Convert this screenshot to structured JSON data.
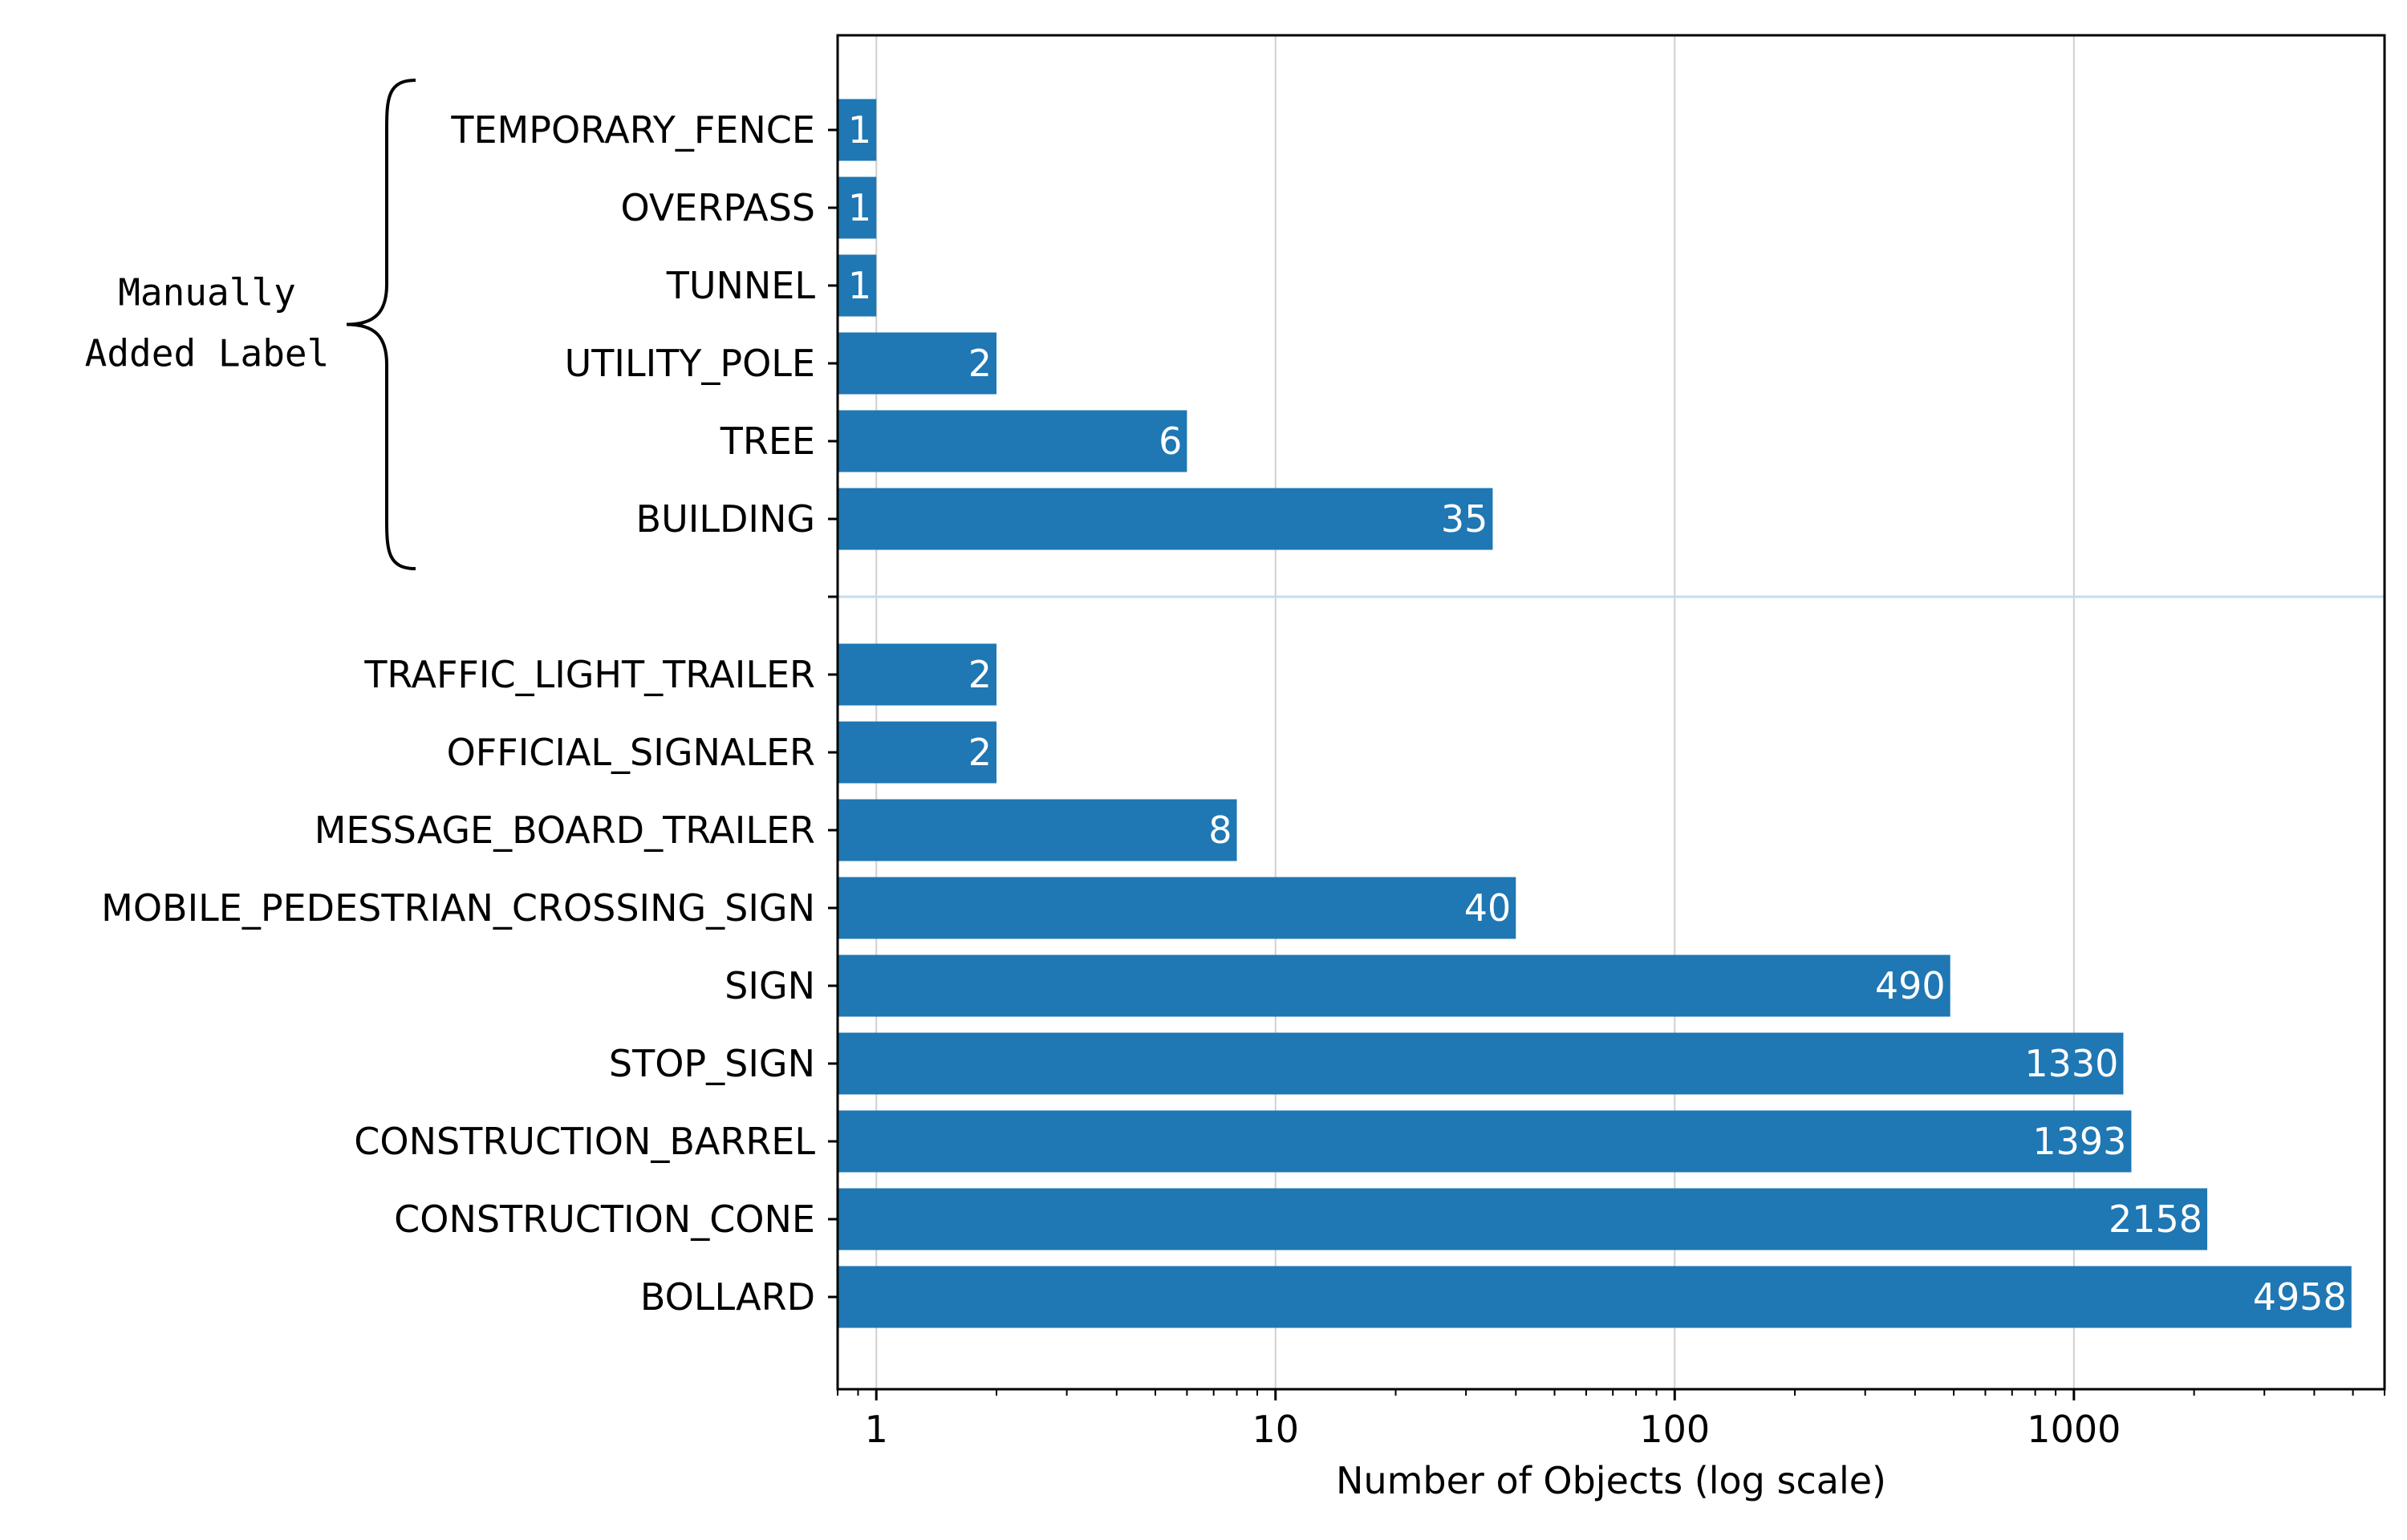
{
  "chart_data": {
    "type": "bar",
    "orientation": "horizontal",
    "xscale": "log",
    "xlabel": "Number of Objects (log scale)",
    "xlim": [
      0.8,
      6000
    ],
    "xticks": [
      {
        "value": 1,
        "label": "1"
      },
      {
        "value": 10,
        "label": "10"
      },
      {
        "value": 100,
        "label": "100"
      },
      {
        "value": 1000,
        "label": "1000"
      }
    ],
    "grid": "vertical",
    "bar_color": "#1f77b4",
    "separator_color": "#c6dbef",
    "groups": [
      {
        "annotation": [
          "Manually",
          "Added Label"
        ],
        "categories": [
          "TEMPORARY_FENCE",
          "OVERPASS",
          "TUNNEL",
          "UTILITY_POLE",
          "TREE",
          "BUILDING"
        ],
        "values": [
          1,
          1,
          1,
          2,
          6,
          35
        ],
        "labels": [
          "1",
          "1",
          "1",
          "2",
          "6",
          "35"
        ]
      },
      {
        "annotation": null,
        "categories": [
          "TRAFFIC_LIGHT_TRAILER",
          "OFFICIAL_SIGNALER",
          "MESSAGE_BOARD_TRAILER",
          "MOBILE_PEDESTRIAN_CROSSING_SIGN",
          "SIGN",
          "STOP_SIGN",
          "CONSTRUCTION_BARREL",
          "CONSTRUCTION_CONE",
          "BOLLARD"
        ],
        "values": [
          2,
          2,
          8,
          40,
          490,
          1330,
          1393,
          2158,
          4958
        ],
        "labels": [
          "2",
          "2",
          "8",
          "40",
          "490",
          "1330",
          "1393",
          "2158",
          "4958"
        ]
      }
    ]
  }
}
